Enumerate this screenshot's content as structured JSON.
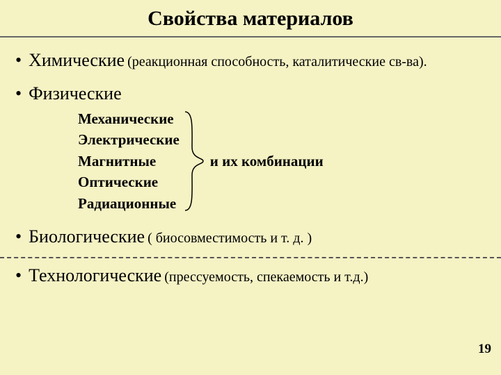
{
  "background_color": "#f5f2c4",
  "title": "Свойства материалов",
  "items": {
    "chem": {
      "main": "Химические",
      "sub": " (реакционная способность, каталитические св-ва)."
    },
    "phys": {
      "main": "Физические"
    },
    "bio": {
      "main": "Биологические",
      "sub": " ( биосовместимость и  т. д. )"
    },
    "tech": {
      "main": "Технологические",
      "sub": " (прессуемость, спекаемость и т.д.)"
    }
  },
  "phys_list": [
    "Механические",
    "Электрические",
    "Магнитные",
    "Оптические",
    "Радиационные"
  ],
  "combo_label": "и их  комбинации",
  "bracket": {
    "width": 36,
    "height": 150,
    "stroke": "#000000",
    "stroke_width": 1.5
  },
  "dashed_color": "#555555",
  "page_number": "19"
}
